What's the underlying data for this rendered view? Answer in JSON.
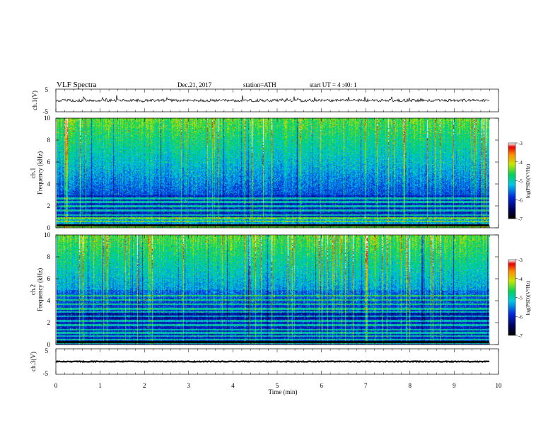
{
  "header": {
    "title": "VLF  Spectra",
    "date": "Dec.21, 2017",
    "station": "station=ATH",
    "start": "start  UT  =   4  :40: 1"
  },
  "chart_data": [
    {
      "type": "line",
      "name": "ch1-waveform",
      "ylabel": "ch.1(V)",
      "ylim": [
        -5,
        5
      ],
      "yticks": [
        "5",
        "-5"
      ],
      "xlim": [
        0,
        10
      ],
      "data_end_min": 9.8,
      "baseline_v": 0,
      "amplitude_v": 1.2
    },
    {
      "type": "heatmap",
      "name": "ch1-spectrogram",
      "ylabel": "ch.1\nFrequency  (kHz)",
      "ylim": [
        0,
        10
      ],
      "yticks": [
        "0",
        "2",
        "4",
        "6",
        "8",
        "10"
      ],
      "xlim": [
        0,
        10
      ],
      "data_end_min": 9.8,
      "colorbar": {
        "label": "log(PSD)(V²/Hz)",
        "range": [
          -7,
          -3
        ],
        "ticks": [
          "-3",
          "-4",
          "-5",
          "-6",
          "-7"
        ]
      },
      "strong_bands_khz": [
        0.1,
        0.3,
        0.6,
        0.9,
        1.2,
        1.6,
        2.0,
        2.4,
        2.7
      ],
      "seed": 7
    },
    {
      "type": "heatmap",
      "name": "ch2-spectrogram",
      "ylabel": "ch.2\nFrequency  (kHz)",
      "ylim": [
        0,
        10
      ],
      "yticks": [
        "0",
        "2",
        "4",
        "6",
        "8",
        "10"
      ],
      "xlim": [
        0,
        10
      ],
      "data_end_min": 9.8,
      "colorbar": {
        "label": "log(PSD)(V²/Hz)",
        "range": [
          -7,
          -3
        ],
        "ticks": [
          "-3",
          "-4",
          "-5",
          "-6",
          "-7"
        ]
      },
      "strong_bands_khz": [
        0.2,
        0.5,
        0.8,
        1.1,
        1.4,
        1.8,
        2.2,
        2.6,
        3.0,
        3.3,
        3.7,
        4.1,
        4.5
      ],
      "seed": 13
    },
    {
      "type": "line",
      "name": "ch3-waveform",
      "ylabel": "ch.3(V)",
      "ylim": [
        -5,
        5
      ],
      "yticks": [
        "5",
        "-5"
      ],
      "xlim": [
        0,
        10
      ],
      "data_end_min": 9.8,
      "baseline_v": 0,
      "amplitude_v": 0.3
    }
  ],
  "xaxis": {
    "label": "Time  (min)",
    "ticks": [
      "0",
      "1",
      "2",
      "3",
      "4",
      "5",
      "6",
      "7",
      "8",
      "9",
      "10"
    ]
  }
}
